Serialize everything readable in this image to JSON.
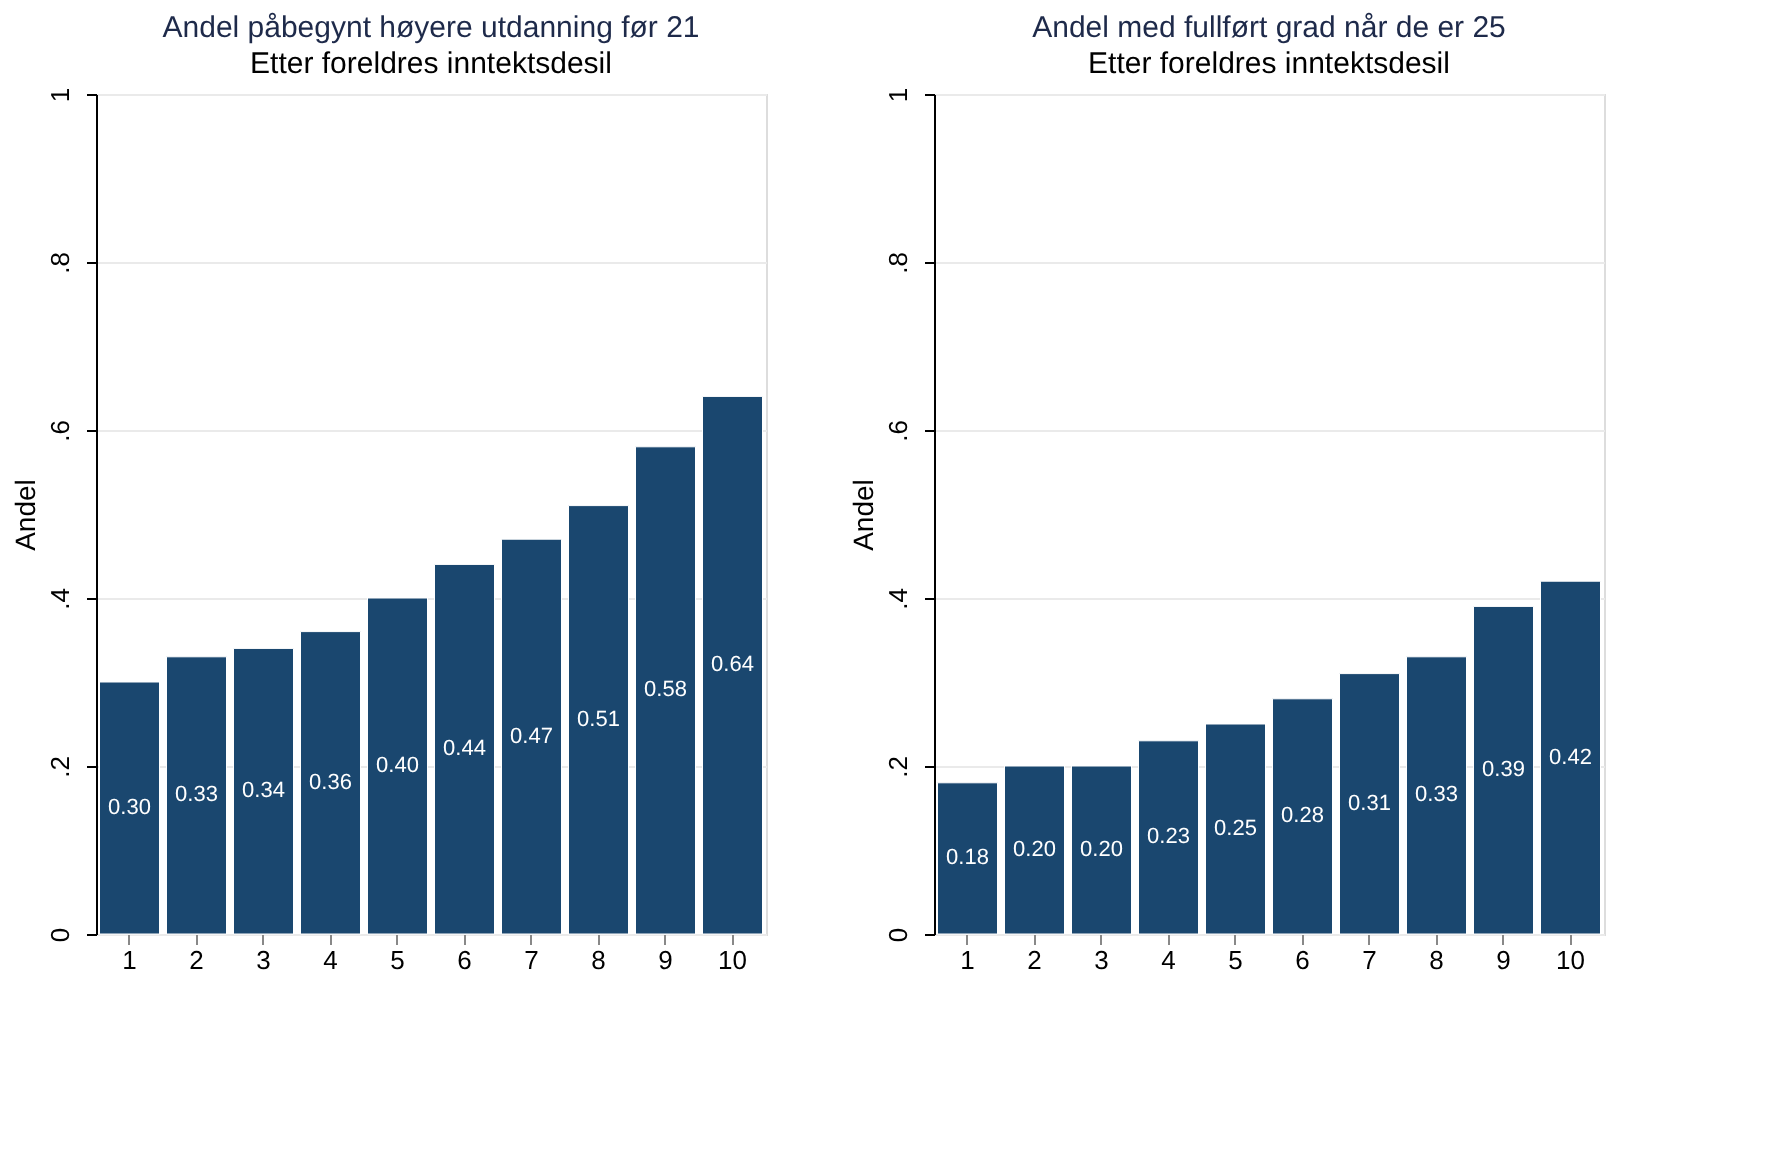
{
  "chart_data": [
    {
      "type": "bar",
      "title": "Andel påbegynt høyere utdanning før 21",
      "subtitle": "Etter foreldres inntektsdesil",
      "ylabel": "Andel",
      "categories": [
        "1",
        "2",
        "3",
        "4",
        "5",
        "6",
        "7",
        "8",
        "9",
        "10"
      ],
      "series": [
        {
          "color": "#1a476f",
          "values": [
            0.3,
            0.33,
            0.34,
            0.36,
            0.4,
            0.44,
            0.47,
            0.51,
            0.58,
            0.64
          ],
          "value_labels": [
            "0.30",
            "0.33",
            "0.34",
            "0.36",
            "0.40",
            "0.44",
            "0.47",
            "0.51",
            "0.58",
            "0.64"
          ]
        }
      ],
      "ylim": [
        0,
        1
      ],
      "yticks": [
        {
          "value": 0,
          "label": "0"
        },
        {
          "value": 0.2,
          "label": ".2"
        },
        {
          "value": 0.4,
          "label": ".4"
        },
        {
          "value": 0.6,
          "label": ".6"
        },
        {
          "value": 0.8,
          "label": ".8"
        },
        {
          "value": 1,
          "label": "1"
        }
      ],
      "grid": "y",
      "legend": false
    },
    {
      "type": "bar",
      "title": "Andel med fullført grad når de er 25",
      "subtitle": "Etter foreldres inntektsdesil",
      "ylabel": "Andel",
      "categories": [
        "1",
        "2",
        "3",
        "4",
        "5",
        "6",
        "7",
        "8",
        "9",
        "10"
      ],
      "series": [
        {
          "color": "#1a476f",
          "values": [
            0.18,
            0.2,
            0.2,
            0.23,
            0.25,
            0.28,
            0.31,
            0.33,
            0.39,
            0.42
          ],
          "value_labels": [
            "0.18",
            "0.20",
            "0.20",
            "0.23",
            "0.25",
            "0.28",
            "0.31",
            "0.33",
            "0.39",
            "0.42"
          ]
        }
      ],
      "ylim": [
        0,
        1
      ],
      "yticks": [
        {
          "value": 0,
          "label": "0"
        },
        {
          "value": 0.2,
          "label": ".2"
        },
        {
          "value": 0.4,
          "label": ".4"
        },
        {
          "value": 0.6,
          "label": ".6"
        },
        {
          "value": 0.8,
          "label": ".8"
        },
        {
          "value": 1,
          "label": "1"
        }
      ],
      "grid": "y",
      "legend": false
    }
  ]
}
